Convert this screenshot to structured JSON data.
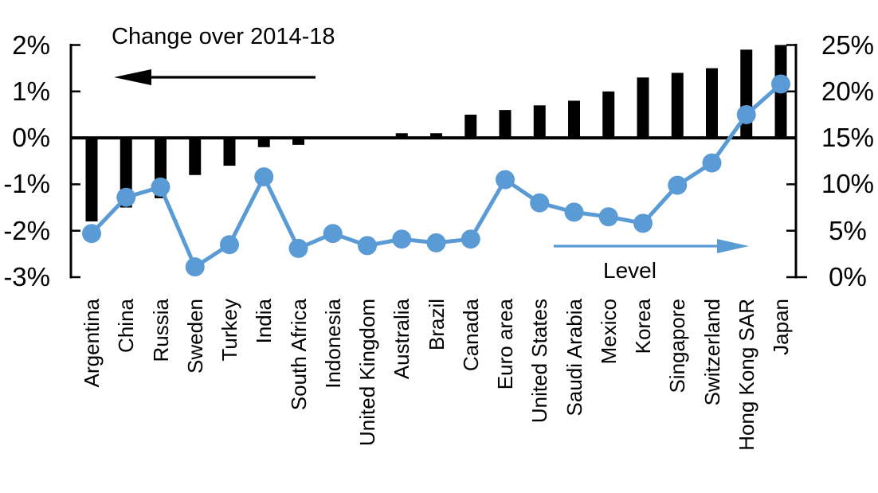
{
  "annotations": {
    "change_label": "Change over 2014-18",
    "level_label": "Level"
  },
  "colors": {
    "bar": "#000000",
    "line": "#5B9BD5",
    "axis": "#000000",
    "text": "#000000",
    "background": "#FFFFFF"
  },
  "chart_data": {
    "type": "combo-bar-line",
    "title": "Change over 2014-18",
    "categories": [
      "Argentina",
      "China",
      "Russia",
      "Sweden",
      "Turkey",
      "India",
      "South Africa",
      "Indonesia",
      "United Kingdom",
      "Australia",
      "Brazil",
      "Canada",
      "Euro area",
      "United States",
      "Saudi Arabia",
      "Mexico",
      "Korea",
      "Singapore",
      "Switzerland",
      "Hong Kong SAR",
      "Japan"
    ],
    "series": [
      {
        "name": "Change over 2014-18",
        "type": "bar",
        "axis": "left",
        "unit": "%",
        "values": [
          -1.8,
          -1.5,
          -1.3,
          -0.8,
          -0.6,
          -0.2,
          -0.15,
          0,
          0,
          0.1,
          0.1,
          0.5,
          0.6,
          0.7,
          0.8,
          1.0,
          1.3,
          1.4,
          1.5,
          1.9,
          2.0
        ]
      },
      {
        "name": "Level",
        "type": "line",
        "axis": "right",
        "unit": "%",
        "values": [
          4.7,
          8.6,
          9.7,
          1.1,
          3.5,
          10.8,
          3.1,
          4.7,
          3.4,
          4.1,
          3.7,
          4.1,
          10.5,
          8.0,
          7.0,
          6.5,
          5.8,
          9.9,
          12.3,
          17.5,
          20.8
        ]
      }
    ],
    "left_axis": {
      "min": -3,
      "max": 2,
      "tick_step": 1,
      "tick_labels": [
        "2%",
        "1%",
        "0%",
        "-1%",
        "-2%",
        "-3%"
      ]
    },
    "right_axis": {
      "min": 0,
      "max": 25,
      "tick_step": 5,
      "tick_labels": [
        "25%",
        "20%",
        "15%",
        "10%",
        "5%",
        "0%"
      ]
    },
    "grid": false,
    "legend_position": "none"
  }
}
